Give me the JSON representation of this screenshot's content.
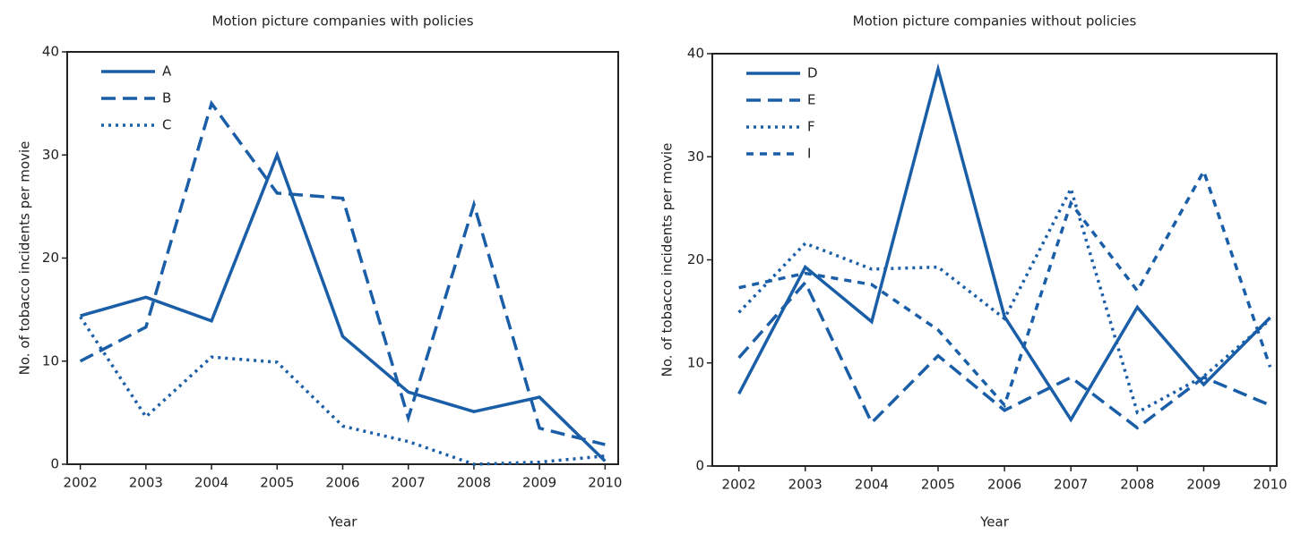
{
  "chart_data": [
    {
      "type": "line",
      "title": "Motion picture companies with policies",
      "xlabel": "Year",
      "ylabel": "No. of tobacco incidents per movie",
      "x": [
        2002,
        2003,
        2004,
        2005,
        2006,
        2007,
        2008,
        2009,
        2010
      ],
      "xlim": [
        2001.8,
        2010.2
      ],
      "xticks": [
        2002,
        2003,
        2004,
        2005,
        2006,
        2007,
        2008,
        2009,
        2010
      ],
      "ylim": [
        0,
        40
      ],
      "yticks": [
        0,
        10,
        20,
        30,
        40
      ],
      "legend": "upper-left",
      "series": [
        {
          "name": "A",
          "color": "#1a5ea8",
          "dash": "solid",
          "values": [
            14.4,
            16.2,
            13.9,
            30.0,
            12.4,
            7.0,
            5.1,
            6.5,
            0.3
          ]
        },
        {
          "name": "B",
          "color": "#1a5ea8",
          "dash": "dashed",
          "values": [
            10.0,
            13.3,
            35.0,
            26.3,
            25.8,
            4.5,
            25.2,
            3.5,
            1.9
          ]
        },
        {
          "name": "C",
          "color": "#1a5ea8",
          "dash": "dotted",
          "values": [
            14.3,
            4.6,
            10.4,
            9.9,
            3.7,
            2.2,
            0.0,
            0.2,
            0.8
          ]
        }
      ]
    },
    {
      "type": "line",
      "title": "Motion picture companies without policies",
      "xlabel": "Year",
      "ylabel": "No. of tobacco incidents per movie",
      "x": [
        2002,
        2003,
        2004,
        2005,
        2006,
        2007,
        2008,
        2009,
        2010
      ],
      "xlim": [
        2001.6,
        2010.1
      ],
      "xticks": [
        2002,
        2003,
        2004,
        2005,
        2006,
        2007,
        2008,
        2009,
        2010
      ],
      "ylim": [
        0,
        40
      ],
      "yticks": [
        0,
        10,
        20,
        30,
        40
      ],
      "legend": "upper-left",
      "series": [
        {
          "name": "D",
          "color": "#1a5ea8",
          "dash": "solid",
          "values": [
            7.0,
            19.3,
            14.0,
            38.5,
            14.5,
            4.5,
            15.4,
            7.9,
            14.4
          ]
        },
        {
          "name": "E",
          "color": "#1a5ea8",
          "dash": "dashed",
          "values": [
            10.5,
            17.8,
            4.2,
            10.7,
            5.4,
            8.6,
            3.7,
            8.6,
            5.9
          ]
        },
        {
          "name": "F",
          "color": "#1a5ea8",
          "dash": "dotted",
          "values": [
            14.9,
            21.6,
            19.1,
            19.3,
            14.3,
            26.9,
            5.2,
            8.7,
            14.2
          ]
        },
        {
          "name": "I",
          "color": "#1a5ea8",
          "dash": "short-dashed",
          "values": [
            17.3,
            18.7,
            17.6,
            13.2,
            5.9,
            25.5,
            17.0,
            28.6,
            9.6
          ]
        }
      ]
    }
  ]
}
